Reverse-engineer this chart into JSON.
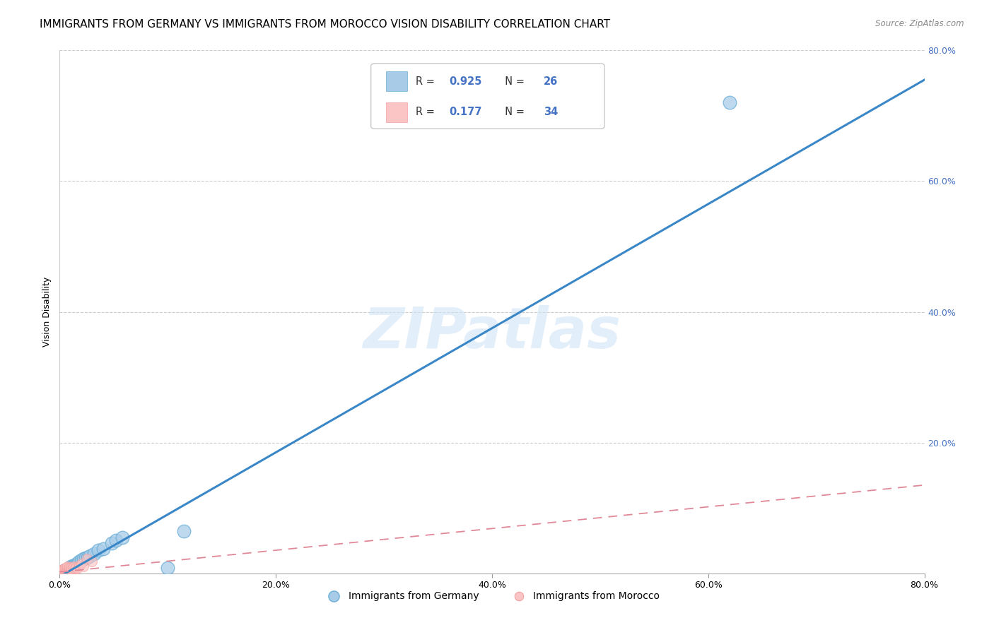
{
  "title": "IMMIGRANTS FROM GERMANY VS IMMIGRANTS FROM MOROCCO VISION DISABILITY CORRELATION CHART",
  "source": "Source: ZipAtlas.com",
  "ylabel": "Vision Disability",
  "xlim": [
    0.0,
    0.8
  ],
  "ylim": [
    0.0,
    0.8
  ],
  "xtick_labels": [
    "0.0%",
    "20.0%",
    "40.0%",
    "60.0%",
    "80.0%"
  ],
  "xtick_vals": [
    0.0,
    0.2,
    0.4,
    0.6,
    0.8
  ],
  "ytick_labels": [
    "20.0%",
    "40.0%",
    "60.0%",
    "80.0%"
  ],
  "ytick_vals": [
    0.2,
    0.4,
    0.6,
    0.8
  ],
  "germany_color": "#a8cce8",
  "germany_edge_color": "#6baed6",
  "morocco_color": "#fcc5c5",
  "morocco_edge_color": "#f4a0a0",
  "germany_line_color": "#3a87c8",
  "morocco_line_color": "#e08898",
  "R_germany": 0.925,
  "N_germany": 26,
  "R_morocco": 0.177,
  "N_morocco": 34,
  "watermark": "ZIPatlas",
  "germany_scatter_x": [
    0.003,
    0.005,
    0.006,
    0.008,
    0.009,
    0.01,
    0.012,
    0.013,
    0.014,
    0.016,
    0.017,
    0.018,
    0.02,
    0.022,
    0.024,
    0.026,
    0.028,
    0.032,
    0.036,
    0.04,
    0.048,
    0.052,
    0.058,
    0.1,
    0.115,
    0.62
  ],
  "germany_scatter_y": [
    0.003,
    0.005,
    0.005,
    0.007,
    0.008,
    0.01,
    0.012,
    0.012,
    0.013,
    0.015,
    0.016,
    0.018,
    0.02,
    0.022,
    0.023,
    0.025,
    0.027,
    0.03,
    0.035,
    0.038,
    0.046,
    0.05,
    0.055,
    0.008,
    0.065,
    0.72
  ],
  "morocco_scatter_x": [
    0.001,
    0.002,
    0.002,
    0.003,
    0.003,
    0.004,
    0.004,
    0.004,
    0.005,
    0.005,
    0.005,
    0.006,
    0.006,
    0.006,
    0.007,
    0.007,
    0.007,
    0.008,
    0.008,
    0.009,
    0.009,
    0.01,
    0.01,
    0.011,
    0.012,
    0.013,
    0.014,
    0.015,
    0.016,
    0.018,
    0.02,
    0.022,
    0.025,
    0.03
  ],
  "morocco_scatter_y": [
    0.003,
    0.004,
    0.005,
    0.003,
    0.005,
    0.004,
    0.005,
    0.007,
    0.003,
    0.005,
    0.008,
    0.004,
    0.006,
    0.009,
    0.004,
    0.006,
    0.01,
    0.005,
    0.008,
    0.005,
    0.009,
    0.004,
    0.008,
    0.006,
    0.007,
    0.01,
    0.007,
    0.009,
    0.007,
    0.012,
    0.015,
    0.01,
    0.022,
    0.018
  ],
  "germany_line_x": [
    0.0,
    0.8
  ],
  "germany_line_y": [
    -0.005,
    0.755
  ],
  "morocco_line_x": [
    0.0,
    0.8
  ],
  "morocco_line_y": [
    0.002,
    0.135
  ],
  "grid_color": "#cccccc",
  "background_color": "#ffffff",
  "right_tick_color": "#4472c4",
  "title_fontsize": 11,
  "axis_label_fontsize": 9,
  "tick_fontsize": 9,
  "legend_color_text": "#333333",
  "legend_R_color": "#4472c4",
  "legend_N_color": "#4472c4"
}
